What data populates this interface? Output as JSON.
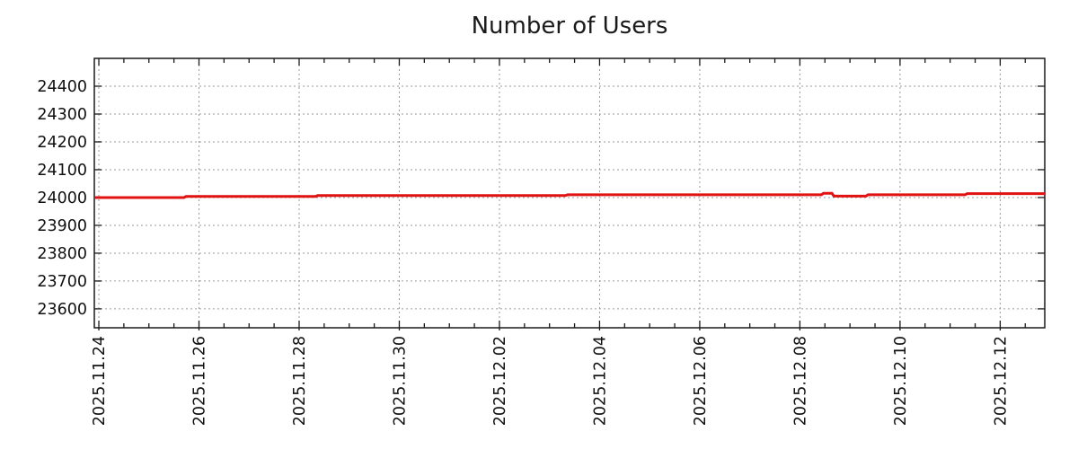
{
  "chart_data": {
    "type": "line",
    "title": "Number of Users",
    "xlabel": "",
    "ylabel": "",
    "legend": "none",
    "background": "#ffffff",
    "x_axis": {
      "day_zero_date": "2025.11.24",
      "tick_labels": [
        "2025.11.24",
        "2025.11.26",
        "2025.11.28",
        "2025.11.30",
        "2025.12.02",
        "2025.12.04",
        "2025.12.06",
        "2025.12.08",
        "2025.12.10",
        "2025.12.12"
      ],
      "tick_days": [
        0,
        2,
        4,
        6,
        8,
        10,
        12,
        14,
        16,
        18
      ],
      "minor_tick_step_days": 0.5,
      "range_days": [
        -0.09,
        18.89
      ],
      "labels_rotated_degrees": 90
    },
    "y_axis": {
      "ticks": [
        23600,
        23700,
        23800,
        23900,
        24000,
        24100,
        24200,
        24300,
        24400
      ],
      "range": [
        23532,
        24500
      ]
    },
    "grid": {
      "visible": true,
      "style": "dashed",
      "color": "#9a9a9a"
    },
    "axis_color": "#1a1a1a",
    "series": [
      {
        "name": "Number of Users",
        "color": "#e01212",
        "points_day_value": [
          [
            -0.09,
            24000
          ],
          [
            1.7,
            24000
          ],
          [
            1.74,
            24004
          ],
          [
            4.33,
            24004
          ],
          [
            4.37,
            24007
          ],
          [
            9.32,
            24007
          ],
          [
            9.36,
            24010
          ],
          [
            14.43,
            24010
          ],
          [
            14.47,
            24015
          ],
          [
            14.64,
            24015
          ],
          [
            14.68,
            24005
          ],
          [
            15.32,
            24005
          ],
          [
            15.36,
            24010
          ],
          [
            17.3,
            24010
          ],
          [
            17.34,
            24014
          ],
          [
            18.89,
            24014
          ]
        ]
      }
    ]
  }
}
